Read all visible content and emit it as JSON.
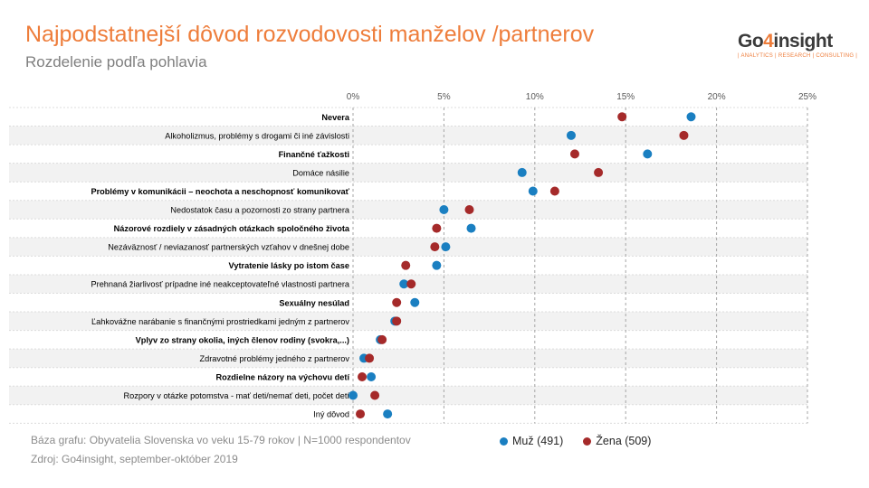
{
  "header": {
    "title": "Najpodstatnejší dôvod rozvodovosti manželov /partnerov",
    "subtitle": "Rozdelenie podľa pohlavia"
  },
  "logo": {
    "name_prefix": "Go",
    "name_digit": "4",
    "name_suffix": "insight",
    "tagline": "| ANALYTICS | RESEARCH | CONSULTING |"
  },
  "colors": {
    "muz": "#1a7fc1",
    "zena": "#a52a2a",
    "title": "#ee7d3b"
  },
  "chart_data": {
    "type": "scatter",
    "x_ticks": [
      "0%",
      "5%",
      "10%",
      "15%",
      "20%",
      "25%"
    ],
    "xlim": [
      0,
      25
    ],
    "grid": true,
    "legend_position": "bottom-right",
    "categories": [
      "Nevera",
      "Alkoholizmus, problémy s drogami či iné závislosti",
      "Finančné ťažkosti",
      "Domáce násilie",
      "Problémy v komunikácii – neochota a neschopnosť komunikovať",
      "Nedostatok času a pozornosti zo strany partnera",
      "Názorové rozdiely v zásadných otázkach spoločného života",
      "Nezáväznosť / neviazanosť partnerských vzťahov v dnešnej dobe",
      "Vytratenie lásky po istom čase",
      "Prehnaná žiarlivosť prípadne iné neakceptovateľné vlastnosti partnera",
      "Sexuálny nesúlad",
      "Ľahkovážne narábanie s finančnými prostriedkami jedným z partnerov",
      "Vplyv zo strany okolia, iných členov rodiny (svokra,...)",
      "Zdravotné problémy jedného z partnerov",
      "Rozdielne názory na výchovu detí",
      "Rozpory v otázke potomstva - mať deti/nemať deti, počet detí",
      "Iný dôvod"
    ],
    "bold": [
      true,
      false,
      true,
      false,
      true,
      false,
      true,
      false,
      true,
      false,
      true,
      false,
      true,
      false,
      true,
      false,
      false
    ],
    "series": [
      {
        "name": "Muž (491)",
        "values": [
          18.6,
          12.0,
          16.2,
          9.3,
          9.9,
          5.0,
          6.5,
          5.1,
          4.6,
          2.8,
          3.4,
          2.3,
          1.5,
          0.6,
          1.0,
          0.0,
          1.9
        ]
      },
      {
        "name": "Žena (509)",
        "values": [
          14.8,
          18.2,
          12.2,
          13.5,
          11.1,
          6.4,
          4.6,
          4.5,
          2.9,
          3.2,
          2.4,
          2.4,
          1.6,
          0.9,
          0.5,
          1.2,
          0.4
        ]
      }
    ]
  },
  "footer": {
    "base": "Báza grafu: Obyvatelia Slovenska vo veku 15-79 rokov | N=1000 respondentov",
    "source": "Zdroj: Go4insight, september-október 2019"
  }
}
